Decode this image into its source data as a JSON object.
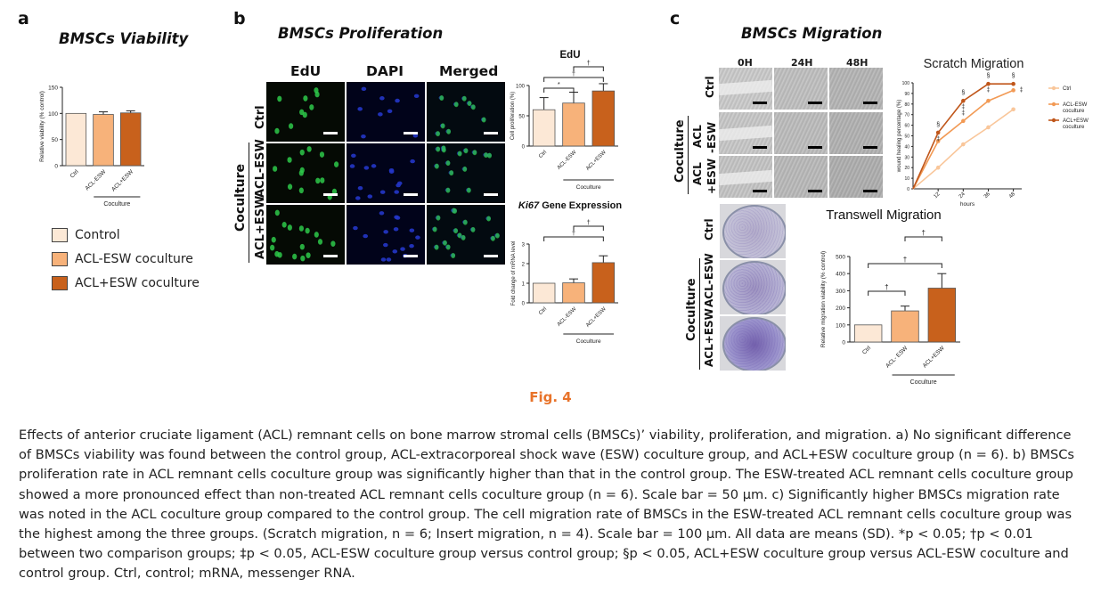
{
  "panel_a": {
    "letter": "a",
    "title": "BMSCs Viability",
    "legend": [
      {
        "label": "Control",
        "color": "#fce8d6"
      },
      {
        "label": "ACL-ESW coculture",
        "color": "#f7b27a"
      },
      {
        "label": "ACL+ESW coculture",
        "color": "#c8611c"
      }
    ]
  },
  "panel_b": {
    "letter": "b",
    "title": "BMSCs Proliferation",
    "columns": [
      "EdU",
      "DAPI",
      "Merged"
    ],
    "rows": [
      "Ctrl",
      "ACL-ESW",
      "ACL+ESW"
    ],
    "group_label": "Coculture"
  },
  "panel_c": {
    "letter": "c",
    "title": "BMSCs Migration",
    "columns": [
      "0H",
      "24H",
      "48H"
    ],
    "scratch_rows": [
      "Ctrl",
      "ACL\n-ESW",
      "ACL\n+ESW"
    ],
    "transwell_rows": [
      "Ctrl",
      "ACL-ESW",
      "ACL+ESW"
    ],
    "group_label": "Coculture"
  },
  "chart_data": [
    {
      "id": "viability",
      "type": "bar",
      "title": "",
      "ylabel": "Relative viability (% control)",
      "categories": [
        "Ctrl",
        "ACL-ESW",
        "ACL+ESW"
      ],
      "values": [
        100,
        98,
        101
      ],
      "errors": [
        0,
        5,
        4
      ],
      "ylim": [
        0,
        150
      ],
      "yticks": [
        0,
        50,
        100,
        150
      ],
      "group_label": "Coculture",
      "colors": [
        "#fce8d6",
        "#f7b27a",
        "#c8611c"
      ]
    },
    {
      "id": "edu",
      "type": "bar",
      "title": "EdU",
      "ylabel": "Cell proliferation (%)",
      "categories": [
        "Ctrl",
        "ACL-ESW",
        "ACL+ESW"
      ],
      "values": [
        60,
        71,
        91
      ],
      "errors": [
        20,
        18,
        12
      ],
      "ylim": [
        0,
        100
      ],
      "yticks": [
        0,
        50,
        100
      ],
      "group_label": "Coculture",
      "significance": [
        {
          "from": 0,
          "to": 1,
          "symbol": "*"
        },
        {
          "from": 0,
          "to": 2,
          "symbol": "†"
        },
        {
          "from": 1,
          "to": 2,
          "symbol": "†"
        }
      ],
      "colors": [
        "#fce8d6",
        "#f7b27a",
        "#c8611c"
      ]
    },
    {
      "id": "ki67",
      "type": "bar",
      "title_italic": "Ki67",
      "title": " Gene Expression",
      "ylabel": "Fold change of mRNA level",
      "categories": [
        "Ctrl",
        "ACL-ESW",
        "ACL+ESW"
      ],
      "values": [
        1.0,
        1.02,
        2.05
      ],
      "errors": [
        0,
        0.2,
        0.35
      ],
      "ylim": [
        0,
        3
      ],
      "yticks": [
        0,
        1,
        2,
        3
      ],
      "group_label": "Coculture",
      "significance": [
        {
          "from": 0,
          "to": 2,
          "symbol": "†"
        },
        {
          "from": 1,
          "to": 2,
          "symbol": "†"
        }
      ],
      "colors": [
        "#fce8d6",
        "#f7b27a",
        "#c8611c"
      ]
    },
    {
      "id": "scratch",
      "type": "line",
      "title": "Scratch Migration",
      "xlabel": "hours",
      "ylabel": "wound healing percentage (%)",
      "x": [
        0,
        12,
        24,
        36,
        48
      ],
      "xticks": [
        12,
        24,
        36,
        48
      ],
      "ylim": [
        0,
        100
      ],
      "yticks": [
        0,
        10,
        20,
        30,
        40,
        50,
        60,
        70,
        80,
        90,
        100
      ],
      "series": [
        {
          "name": "Ctrl",
          "values": [
            0,
            20,
            42,
            58,
            75
          ],
          "color": "#f9c69a"
        },
        {
          "name": "ACL-ESW coculture",
          "values": [
            0,
            45,
            64,
            83,
            93
          ],
          "color": "#f29a55"
        },
        {
          "name": "ACL+ESW coculture",
          "values": [
            0,
            53,
            83,
            99,
            99
          ],
          "color": "#c0561a"
        }
      ],
      "annotations": [
        {
          "x": 12,
          "marks": [
            "§",
            "‡"
          ]
        },
        {
          "x": 24,
          "marks": [
            "§",
            "‡",
            "‡"
          ]
        },
        {
          "x": 36,
          "marks": [
            "§",
            "‡"
          ]
        },
        {
          "x": 48,
          "marks": [
            "§",
            "‡"
          ]
        }
      ]
    },
    {
      "id": "transwell",
      "type": "bar",
      "title": "Transwell Migration",
      "ylabel": "Relative migration viability (% control)",
      "categories": [
        "Ctrl",
        "ACL- ESW",
        "ACL+ESW"
      ],
      "values": [
        100,
        182,
        315
      ],
      "errors": [
        0,
        28,
        85
      ],
      "ylim": [
        0,
        500
      ],
      "yticks": [
        0,
        100,
        200,
        300,
        400,
        500
      ],
      "group_label": "Coculture",
      "significance": [
        {
          "from": 0,
          "to": 1,
          "symbol": "†"
        },
        {
          "from": 0,
          "to": 2,
          "symbol": "†"
        },
        {
          "from": 1,
          "to": 2,
          "symbol": "†"
        }
      ],
      "colors": [
        "#fce8d6",
        "#f7b27a",
        "#c8611c"
      ]
    }
  ],
  "figure_label": "Fig. 4",
  "caption": "Effects of anterior cruciate ligament (ACL) remnant cells on bone marrow stromal cells (BMSCs)’ viability, proliferation, and migration. a) No significant difference of BMSCs viability was found between the control group, ACL-extracorporeal shock wave (ESW) coculture group, and ACL+ESW coculture group (n = 6). b) BMSCs proliferation rate in ACL remnant cells coculture group was significantly higher than that in the control group. The ESW-treated ACL remnant cells coculture group showed a more pronounced effect than non-treated ACL remnant cells coculture group (n = 6). Scale bar = 50 μm. c) Significantly higher BMSCs migration rate was noted in the ACL coculture group compared to the control group. The cell migration rate of BMSCs in the ESW-treated ACL remnant cells coculture group was the highest among the three groups. (Scratch migration, n = 6; Insert migration, n = 4). Scale bar = 100 μm. All data are means (SD). *p < 0.05; †p < 0.01 between two comparison groups; ‡p < 0.05, ACL-ESW coculture group versus control group; §p < 0.05, ACL+ESW coculture group versus ACL-ESW coculture and control group. Ctrl, control; mRNA, messenger RNA."
}
